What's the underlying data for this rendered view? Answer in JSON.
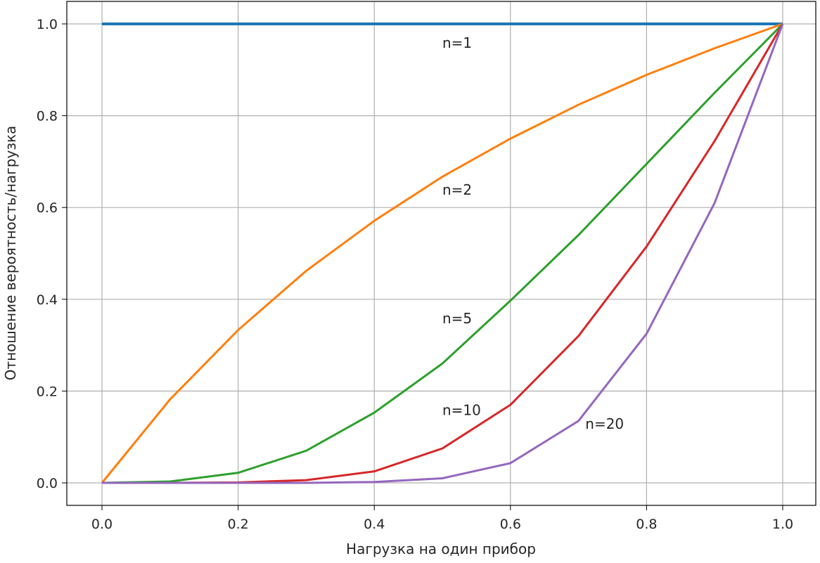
{
  "chart_data": {
    "type": "line",
    "title": "",
    "xlabel": "Нагрузка на один прибор",
    "ylabel": "Отношение вероятность/нагрузка",
    "xlim": [
      -0.05,
      1.05
    ],
    "ylim": [
      -0.05,
      1.05
    ],
    "grid": true,
    "x": [
      0.0,
      0.1,
      0.2,
      0.3,
      0.4,
      0.5,
      0.6,
      0.7,
      0.8,
      0.9,
      1.0
    ],
    "xticks": [
      "0.0",
      "0.2",
      "0.4",
      "0.6",
      "0.8",
      "1.0"
    ],
    "yticks": [
      "0.0",
      "0.2",
      "0.4",
      "0.6",
      "0.8",
      "1.0"
    ],
    "series": [
      {
        "name": "n=1",
        "color": "#1f77b4",
        "values": [
          1,
          1,
          1,
          1,
          1,
          1,
          1,
          1,
          1,
          1,
          1
        ]
      },
      {
        "name": "n=2",
        "color": "#ff7f0e",
        "values": [
          0,
          0.182,
          0.333,
          0.462,
          0.571,
          0.667,
          0.75,
          0.824,
          0.889,
          0.947,
          1
        ]
      },
      {
        "name": "n=5",
        "color": "#2ca02c",
        "values": [
          0,
          0.003,
          0.022,
          0.07,
          0.153,
          0.26,
          0.397,
          0.54,
          0.695,
          0.85,
          1
        ]
      },
      {
        "name": "n=10",
        "color": "#d62728",
        "values": [
          0,
          0,
          0.001,
          0.006,
          0.025,
          0.075,
          0.17,
          0.32,
          0.515,
          0.745,
          1
        ]
      },
      {
        "name": "n=20",
        "color": "#9467bd",
        "values": [
          0,
          0,
          0,
          0,
          0.002,
          0.01,
          0.043,
          0.135,
          0.325,
          0.61,
          1
        ]
      }
    ],
    "annotations": [
      {
        "text": "n=1",
        "x": 0.5,
        "y": 0.96
      },
      {
        "text": "n=2",
        "x": 0.5,
        "y": 0.64
      },
      {
        "text": "n=5",
        "x": 0.5,
        "y": 0.36
      },
      {
        "text": "n=10",
        "x": 0.5,
        "y": 0.16
      },
      {
        "text": "n=20",
        "x": 0.71,
        "y": 0.13
      }
    ]
  }
}
